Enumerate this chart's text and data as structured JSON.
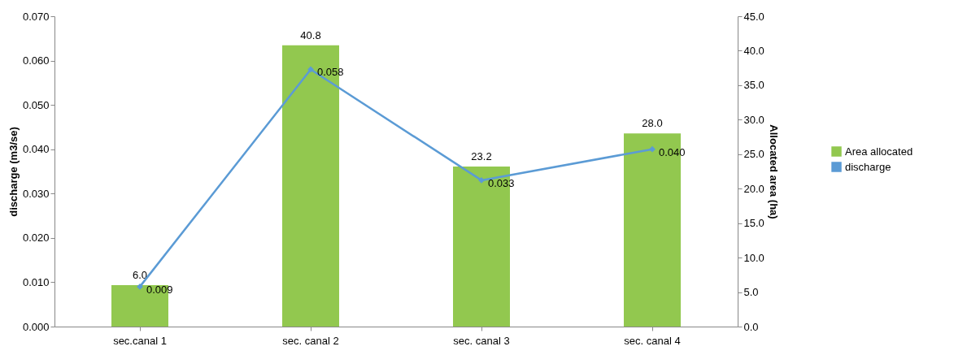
{
  "chart_data": {
    "type": "bar",
    "categories": [
      "sec.canal 1",
      "sec. canal 2",
      "sec. canal 3",
      "sec. canal 4"
    ],
    "ylabel": "discharge (m3/se)",
    "y2label": "Allocated area (ha)",
    "series": [
      {
        "name": "Area allocated",
        "axis": "y2",
        "color": "#92c84f",
        "values": [
          6.0,
          40.8,
          23.2,
          28.0
        ],
        "value_labels": [
          "6.0",
          "40.8",
          "23.2",
          "28.0"
        ]
      },
      {
        "name": "discharge",
        "type": "line",
        "axis": "y",
        "color": "#5b9bd5",
        "values": [
          0.009,
          0.058,
          0.033,
          0.04
        ],
        "value_labels": [
          "0.009",
          "0.058",
          "0.033",
          "0.040"
        ]
      }
    ],
    "ylim": [
      0,
      0.07
    ],
    "yticks": [
      {
        "value": 0,
        "label": "0.000"
      },
      {
        "value": 0.01,
        "label": "0.010"
      },
      {
        "value": 0.02,
        "label": "0.020"
      },
      {
        "value": 0.03,
        "label": "0.030"
      },
      {
        "value": 0.04,
        "label": "0.040"
      },
      {
        "value": 0.05,
        "label": "0.050"
      },
      {
        "value": 0.06,
        "label": "0.060"
      },
      {
        "value": 0.07,
        "label": "0.070"
      }
    ],
    "y2lim": [
      0,
      45
    ],
    "y2ticks": [
      {
        "value": 0,
        "label": "0.0"
      },
      {
        "value": 5,
        "label": "5.0"
      },
      {
        "value": 10,
        "label": "10.0"
      },
      {
        "value": 15,
        "label": "15.0"
      },
      {
        "value": 20,
        "label": "20.0"
      },
      {
        "value": 25,
        "label": "25.0"
      },
      {
        "value": 30,
        "label": "30.0"
      },
      {
        "value": 35,
        "label": "35.0"
      },
      {
        "value": 40,
        "label": "40.0"
      },
      {
        "value": 45,
        "label": "45.0"
      }
    ],
    "grid": false,
    "legend": "right",
    "marker": "diamond",
    "line_style": "solid"
  }
}
